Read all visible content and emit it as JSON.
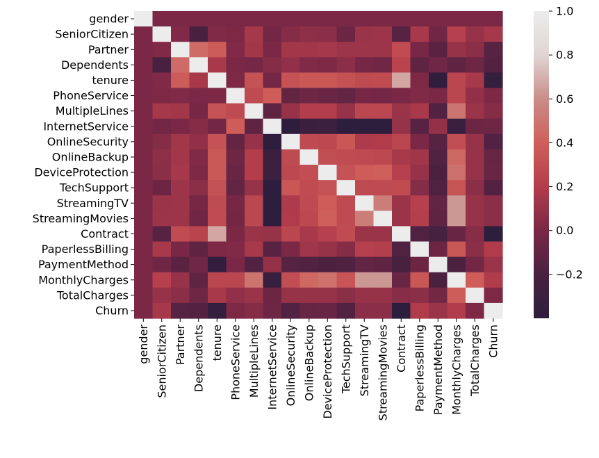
{
  "chart_data": {
    "type": "heatmap",
    "title": "",
    "labels": [
      "gender",
      "SeniorCitizen",
      "Partner",
      "Dependents",
      "tenure",
      "PhoneService",
      "MultipleLines",
      "InternetService",
      "OnlineSecurity",
      "OnlineBackup",
      "DeviceProtection",
      "TechSupport",
      "StreamingTV",
      "StreamingMovies",
      "Contract",
      "PaperlessBilling",
      "PaymentMethod",
      "MonthlyCharges",
      "TotalCharges",
      "Churn"
    ],
    "matrix": [
      [
        1.0,
        0.0,
        0.0,
        0.0,
        0.0,
        0.0,
        0.0,
        0.0,
        0.0,
        0.0,
        0.0,
        0.0,
        0.0,
        0.0,
        0.0,
        0.0,
        0.0,
        0.0,
        0.0,
        0.0
      ],
      [
        0.0,
        1.0,
        0.02,
        -0.21,
        0.02,
        0.01,
        0.15,
        -0.03,
        0.04,
        0.07,
        0.06,
        -0.06,
        0.11,
        0.12,
        -0.14,
        0.16,
        -0.04,
        0.22,
        0.1,
        0.15
      ],
      [
        0.0,
        0.02,
        1.0,
        0.45,
        0.38,
        0.02,
        0.14,
        0.0,
        0.14,
        0.14,
        0.15,
        0.12,
        0.12,
        0.12,
        0.29,
        -0.01,
        -0.13,
        0.1,
        0.06,
        -0.15
      ],
      [
        0.0,
        -0.21,
        0.45,
        1.0,
        0.16,
        0.0,
        -0.02,
        0.04,
        0.08,
        0.02,
        0.01,
        0.06,
        -0.02,
        -0.04,
        0.24,
        -0.11,
        -0.04,
        -0.11,
        -0.05,
        -0.16
      ],
      [
        0.0,
        0.02,
        0.38,
        0.16,
        1.0,
        0.01,
        0.33,
        -0.03,
        0.33,
        0.36,
        0.36,
        0.32,
        0.28,
        0.29,
        0.67,
        0.01,
        -0.37,
        0.25,
        0.16,
        -0.35
      ],
      [
        0.0,
        0.01,
        0.02,
        0.0,
        0.01,
        1.0,
        0.28,
        0.39,
        -0.09,
        -0.05,
        -0.07,
        -0.1,
        -0.02,
        -0.03,
        0.0,
        0.02,
        -0.0,
        0.25,
        0.08,
        0.01
      ],
      [
        0.0,
        0.15,
        0.14,
        -0.02,
        0.33,
        0.28,
        1.0,
        -0.11,
        0.1,
        0.2,
        0.2,
        0.1,
        0.26,
        0.26,
        0.11,
        0.16,
        -0.17,
        0.49,
        0.11,
        0.04
      ],
      [
        0.0,
        -0.03,
        0.0,
        0.04,
        -0.03,
        0.39,
        -0.11,
        1.0,
        -0.39,
        -0.31,
        -0.3,
        -0.39,
        -0.42,
        -0.42,
        0.1,
        -0.14,
        0.09,
        -0.32,
        -0.06,
        -0.05
      ],
      [
        0.0,
        0.04,
        0.14,
        0.08,
        0.33,
        -0.09,
        0.1,
        -0.39,
        1.0,
        0.28,
        0.27,
        0.35,
        0.18,
        0.19,
        0.25,
        -0.0,
        -0.15,
        0.3,
        0.1,
        -0.17
      ],
      [
        0.0,
        0.07,
        0.14,
        0.02,
        0.36,
        -0.05,
        0.2,
        -0.31,
        0.28,
        1.0,
        0.3,
        0.29,
        0.28,
        0.27,
        0.16,
        0.13,
        -0.17,
        0.44,
        0.1,
        -0.08
      ],
      [
        0.0,
        0.06,
        0.15,
        0.01,
        0.36,
        -0.07,
        0.2,
        -0.3,
        0.27,
        0.3,
        1.0,
        0.33,
        0.39,
        0.4,
        0.22,
        0.1,
        -0.19,
        0.48,
        0.1,
        -0.07
      ],
      [
        0.0,
        -0.06,
        0.12,
        0.06,
        0.32,
        -0.1,
        0.1,
        -0.39,
        0.35,
        0.29,
        0.33,
        1.0,
        0.28,
        0.28,
        0.29,
        0.04,
        -0.18,
        0.34,
        0.06,
        -0.16
      ],
      [
        0.0,
        0.11,
        0.12,
        -0.02,
        0.28,
        -0.02,
        0.26,
        -0.42,
        0.18,
        0.28,
        0.39,
        0.28,
        1.0,
        0.53,
        0.11,
        0.22,
        -0.1,
        0.63,
        0.1,
        0.06
      ],
      [
        0.0,
        0.12,
        0.12,
        -0.04,
        0.29,
        -0.03,
        0.26,
        -0.42,
        0.19,
        0.27,
        0.4,
        0.28,
        0.53,
        1.0,
        0.11,
        0.21,
        -0.11,
        0.63,
        0.1,
        0.06
      ],
      [
        0.0,
        -0.14,
        0.29,
        0.24,
        0.67,
        0.0,
        0.11,
        0.1,
        0.25,
        0.16,
        0.22,
        0.29,
        0.11,
        0.11,
        1.0,
        -0.18,
        -0.23,
        -0.07,
        0.05,
        -0.4
      ],
      [
        0.0,
        0.16,
        -0.01,
        -0.11,
        0.01,
        0.02,
        0.16,
        -0.14,
        -0.0,
        0.13,
        0.1,
        0.04,
        0.22,
        0.21,
        -0.18,
        1.0,
        -0.06,
        0.35,
        0.06,
        0.19
      ],
      [
        0.0,
        -0.04,
        -0.13,
        -0.04,
        -0.37,
        -0.0,
        -0.17,
        0.09,
        -0.15,
        -0.17,
        -0.19,
        -0.18,
        -0.1,
        -0.11,
        -0.23,
        -0.06,
        1.0,
        -0.19,
        -0.03,
        0.11
      ],
      [
        0.0,
        0.22,
        0.1,
        -0.11,
        0.25,
        0.25,
        0.49,
        -0.32,
        0.3,
        0.44,
        0.48,
        0.34,
        0.63,
        0.63,
        -0.07,
        0.35,
        -0.19,
        1.0,
        0.39,
        0.19
      ],
      [
        0.0,
        0.1,
        0.06,
        -0.05,
        0.16,
        0.08,
        0.11,
        -0.06,
        0.1,
        0.1,
        0.1,
        0.06,
        0.1,
        0.1,
        0.05,
        0.06,
        -0.03,
        0.39,
        1.0,
        0.01
      ],
      [
        0.0,
        0.15,
        -0.15,
        -0.16,
        -0.35,
        0.01,
        0.04,
        -0.05,
        -0.17,
        -0.08,
        -0.07,
        -0.16,
        0.06,
        0.06,
        -0.4,
        0.19,
        0.11,
        0.19,
        0.01,
        1.0
      ]
    ],
    "colorbar": {
      "vmin": -0.4,
      "vmax": 1.0,
      "ticks": [
        -0.2,
        0.0,
        0.2,
        0.4,
        0.6,
        0.8,
        1.0
      ],
      "tick_labels": [
        "−0.2",
        "0.0",
        "0.2",
        "0.4",
        "0.6",
        "0.8",
        "1.0"
      ]
    },
    "colormap": [
      "#2d1e3e",
      "#4a2140",
      "#7a2846",
      "#b33d4b",
      "#cf5f5a",
      "#c98d88",
      "#e0d5d5",
      "#ececec"
    ]
  }
}
